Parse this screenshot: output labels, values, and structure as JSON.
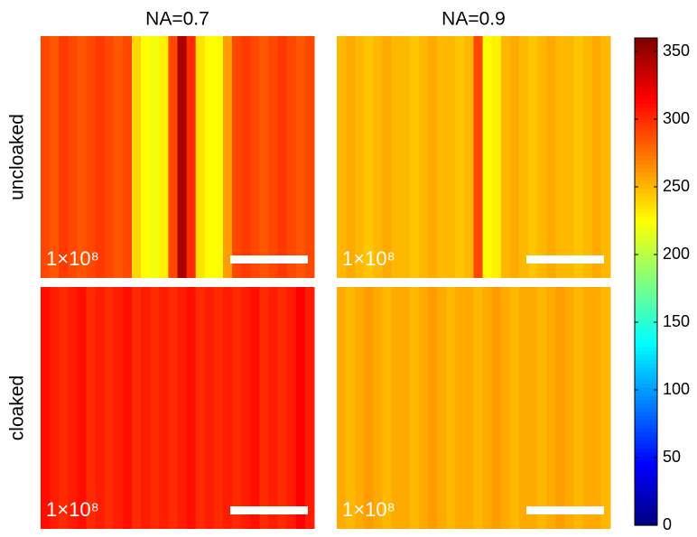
{
  "chart_data": {
    "type": "heatmap",
    "column_titles": [
      "NA=0.7",
      "NA=0.9"
    ],
    "row_labels": [
      "uncloaked",
      "cloaked"
    ],
    "scale_label": "1×10⁸",
    "colormap": "jet",
    "clim": [
      0,
      360
    ],
    "cticks": [
      0,
      50,
      100,
      150,
      200,
      250,
      300,
      350
    ],
    "values": [
      [
        [
          290,
          285,
          295,
          290,
          285,
          290,
          295,
          290,
          285,
          290,
          240,
          225,
          220,
          230,
          290,
          345,
          300,
          235,
          225,
          225,
          260,
          290,
          295,
          290,
          285,
          290,
          295,
          290,
          285,
          290
        ],
        [
          250,
          255,
          250,
          245,
          250,
          255,
          250,
          250,
          245,
          250,
          255,
          250,
          250,
          245,
          250,
          290,
          225,
          230,
          250,
          255,
          250,
          245,
          250,
          255,
          250,
          250,
          245,
          250,
          255,
          250
        ]
      ],
      [
        [
          310,
          305,
          300,
          305,
          310,
          300,
          305,
          300,
          305,
          310,
          300,
          305,
          300,
          305,
          300,
          305,
          310,
          300,
          305,
          300,
          305,
          300,
          305,
          310,
          300,
          305,
          300,
          305,
          315,
          305
        ],
        [
          255,
          250,
          255,
          260,
          255,
          250,
          255,
          255,
          250,
          255,
          260,
          255,
          250,
          255,
          255,
          250,
          255,
          260,
          255,
          250,
          255,
          255,
          250,
          255,
          260,
          255,
          250,
          255,
          255,
          250
        ]
      ]
    ]
  }
}
